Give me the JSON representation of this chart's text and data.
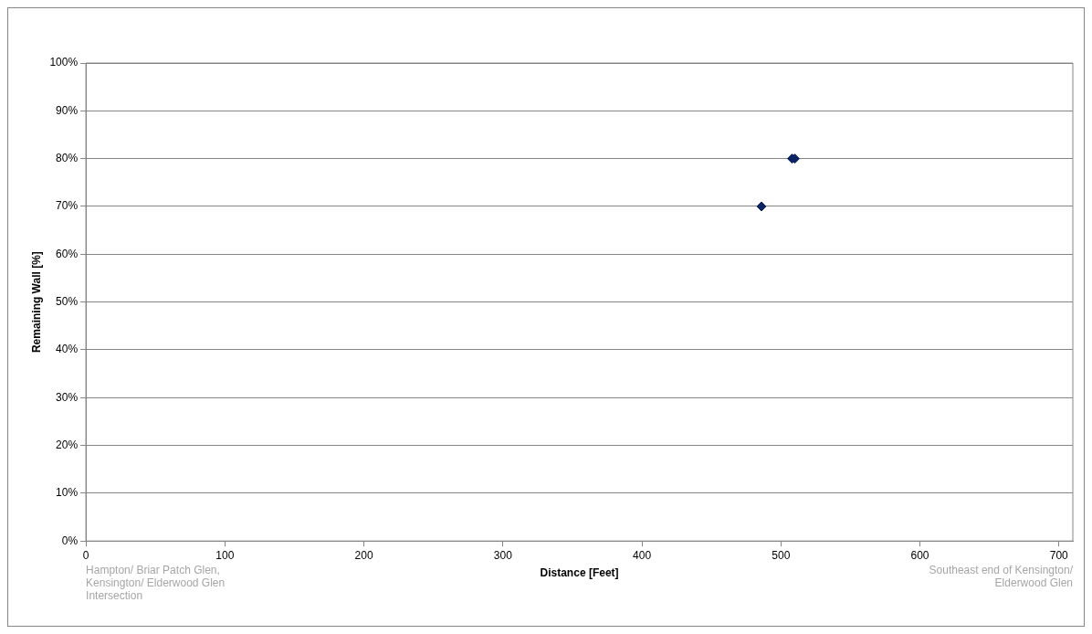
{
  "chart_data": {
    "type": "scatter",
    "xlabel": "Distance [Feet]",
    "ylabel": "Remaining Wall [%]",
    "x": [
      486,
      508,
      510
    ],
    "values": [
      70,
      80,
      80
    ],
    "color": "#0c2461",
    "marker": "diamond",
    "xlim": [
      0,
      710
    ],
    "xticks": [
      0,
      100,
      200,
      300,
      400,
      500,
      600,
      700
    ],
    "ylim": [
      0,
      100
    ],
    "yticks": [
      {
        "value": 0,
        "label": "0%"
      },
      {
        "value": 10,
        "label": "10%"
      },
      {
        "value": 20,
        "label": "20%"
      },
      {
        "value": 30,
        "label": "30%"
      },
      {
        "value": 40,
        "label": "40%"
      },
      {
        "value": 50,
        "label": "50%"
      },
      {
        "value": 60,
        "label": "60%"
      },
      {
        "value": 70,
        "label": "70%"
      },
      {
        "value": 80,
        "label": "80%"
      },
      {
        "value": 90,
        "label": "90%"
      },
      {
        "value": 100,
        "label": "100%"
      }
    ],
    "grid": "y",
    "legend": false,
    "annotations": [
      "Hampton/ Briar Patch Glen, Kensington/ Elderwood Glen Intersection",
      "Southeast end of Kensington/ Elderwood Glen"
    ]
  }
}
